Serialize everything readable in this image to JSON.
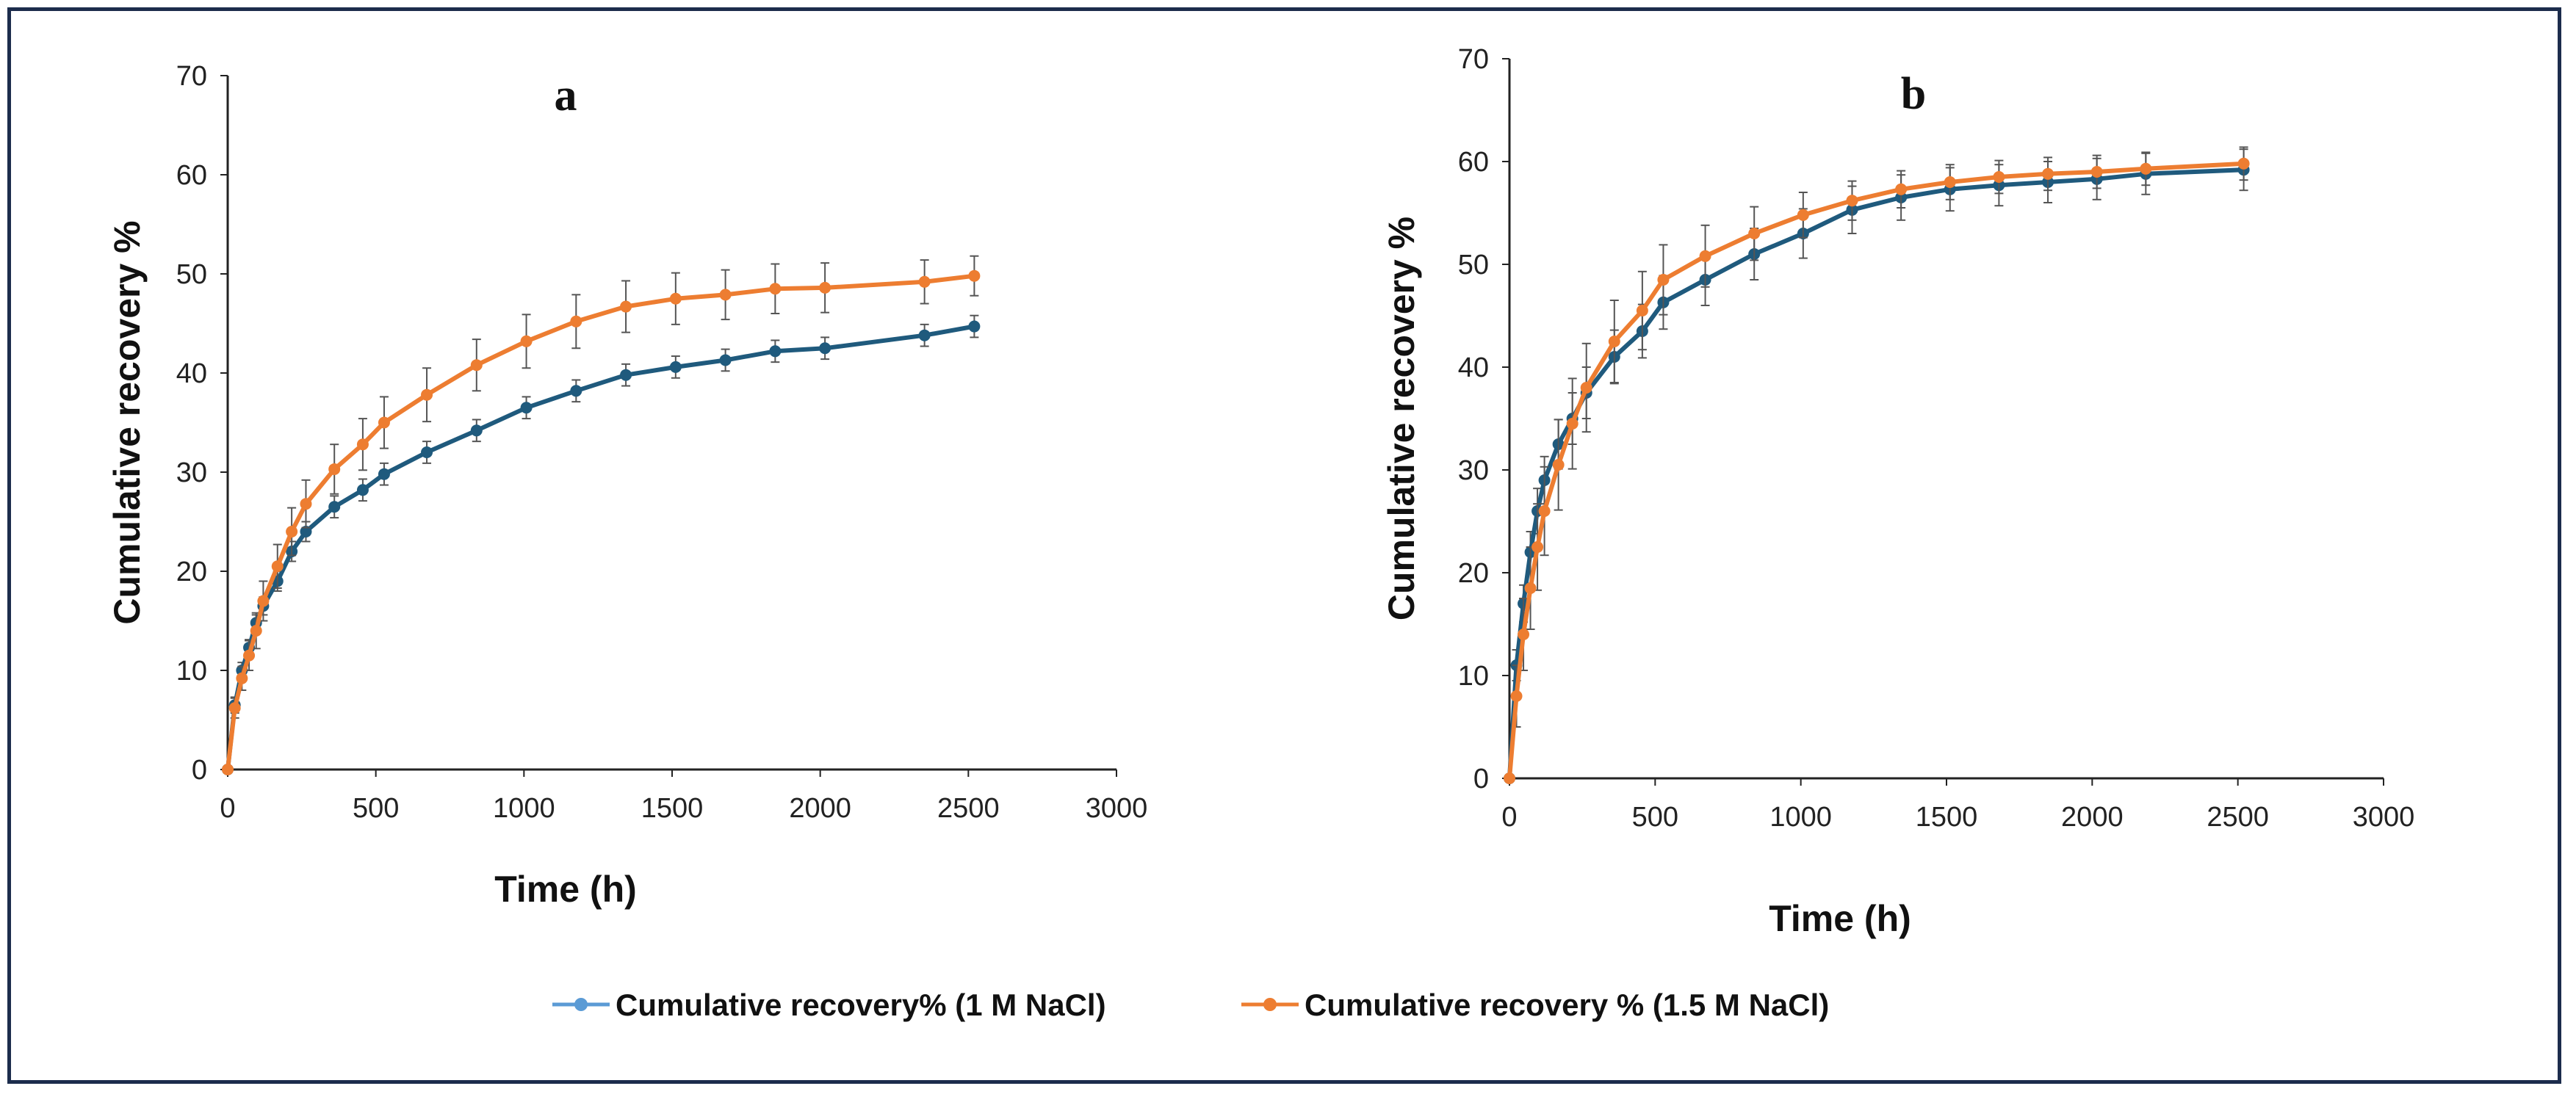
{
  "colors": {
    "series_1": "#1f5a7d",
    "series_2": "#ed7d31",
    "legend_1": "#5b9bd5",
    "axis": "#222222",
    "error_bar": "#555555",
    "frame": "#1c2c4c"
  },
  "legend": {
    "entries": [
      "Cumulative recovery% (1 M NaCl)",
      "Cumulative recovery % (1.5 M NaCl)"
    ]
  },
  "chart_data": [
    {
      "type": "line",
      "panel_label": "a",
      "xlabel": "Time (h)",
      "ylabel": "Cumulative recovery %",
      "xlim": [
        0,
        3000
      ],
      "ylim": [
        0,
        70
      ],
      "xticks": [
        0,
        500,
        1000,
        1500,
        2000,
        2500,
        3000
      ],
      "yticks": [
        0,
        10,
        20,
        30,
        40,
        50,
        60,
        70
      ],
      "grid": false,
      "series": [
        {
          "name": "Cumulative recovery% (1 M NaCl)",
          "x": [
            0,
            24,
            48,
            72,
            96,
            120,
            168,
            216,
            264,
            360,
            456,
            528,
            672,
            840,
            1008,
            1176,
            1344,
            1512,
            1680,
            1848,
            2016,
            2352,
            2520
          ],
          "y": [
            0,
            6.5,
            10,
            12.3,
            14.8,
            16.5,
            19,
            22,
            24,
            26.5,
            28.2,
            29.8,
            32,
            34.2,
            36.5,
            38.2,
            39.8,
            40.6,
            41.3,
            42.2,
            42.5,
            43.8,
            44.7
          ],
          "err": [
            0,
            0.8,
            0.8,
            0.8,
            0.8,
            0.9,
            1,
            1,
            1,
            1.1,
            1.1,
            1.1,
            1.1,
            1.1,
            1.1,
            1.1,
            1.1,
            1.1,
            1.1,
            1.1,
            1.1,
            1.1,
            1.1
          ]
        },
        {
          "name": "Cumulative recovery % (1.5 M NaCl)",
          "x": [
            0,
            24,
            48,
            72,
            96,
            120,
            168,
            216,
            264,
            360,
            456,
            528,
            672,
            840,
            1008,
            1176,
            1344,
            1512,
            1680,
            1848,
            2016,
            2352,
            2520
          ],
          "y": [
            0,
            6.2,
            9.2,
            11.5,
            14,
            17,
            20.5,
            24,
            26.8,
            30.3,
            32.8,
            35,
            37.8,
            40.8,
            43.2,
            45.2,
            46.7,
            47.5,
            47.9,
            48.5,
            48.6,
            49.2,
            49.8
          ],
          "err": [
            0,
            1,
            1.2,
            1.5,
            1.8,
            2,
            2.2,
            2.4,
            2.4,
            2.5,
            2.6,
            2.6,
            2.7,
            2.6,
            2.7,
            2.7,
            2.6,
            2.6,
            2.5,
            2.5,
            2.5,
            2.2,
            2
          ]
        }
      ]
    },
    {
      "type": "line",
      "panel_label": "b",
      "xlabel": "Time (h)",
      "ylabel": "Cumulative recovery %",
      "xlim": [
        0,
        3000
      ],
      "ylim": [
        0,
        70
      ],
      "xticks": [
        0,
        500,
        1000,
        1500,
        2000,
        2500,
        3000
      ],
      "yticks": [
        0,
        10,
        20,
        30,
        40,
        50,
        60,
        70
      ],
      "grid": false,
      "series": [
        {
          "name": "Cumulative recovery% (1 M NaCl)",
          "x": [
            0,
            24,
            48,
            72,
            96,
            120,
            168,
            216,
            264,
            360,
            456,
            528,
            672,
            840,
            1008,
            1176,
            1344,
            1512,
            1680,
            1848,
            2016,
            2184,
            2520
          ],
          "y": [
            0,
            11,
            17,
            22,
            26,
            29,
            32.5,
            35,
            37.5,
            41,
            43.5,
            46.3,
            48.5,
            51,
            53,
            55.3,
            56.5,
            57.3,
            57.7,
            58,
            58.3,
            58.8,
            59.2
          ],
          "err": [
            0,
            1.5,
            1.8,
            2,
            2.2,
            2.3,
            2.4,
            2.5,
            2.5,
            2.6,
            2.6,
            2.6,
            2.5,
            2.5,
            2.4,
            2.3,
            2.2,
            2.1,
            2,
            2,
            2,
            2,
            2
          ]
        },
        {
          "name": "Cumulative recovery % (1.5 M NaCl)",
          "x": [
            0,
            24,
            48,
            72,
            96,
            120,
            168,
            216,
            264,
            360,
            456,
            528,
            672,
            840,
            1008,
            1176,
            1344,
            1512,
            1680,
            1848,
            2016,
            2184,
            2520
          ],
          "y": [
            0,
            8,
            14,
            18.5,
            22.5,
            26,
            30.5,
            34.5,
            38,
            42.5,
            45.5,
            48.5,
            50.8,
            53,
            54.8,
            56.2,
            57.3,
            58,
            58.5,
            58.8,
            59,
            59.3,
            59.8
          ],
          "err": [
            0,
            3,
            3.5,
            4,
            4.2,
            4.3,
            4.4,
            4.4,
            4.3,
            4,
            3.8,
            3.4,
            3,
            2.6,
            2.2,
            1.9,
            1.8,
            1.7,
            1.6,
            1.6,
            1.6,
            1.6,
            1.6
          ]
        }
      ]
    }
  ]
}
